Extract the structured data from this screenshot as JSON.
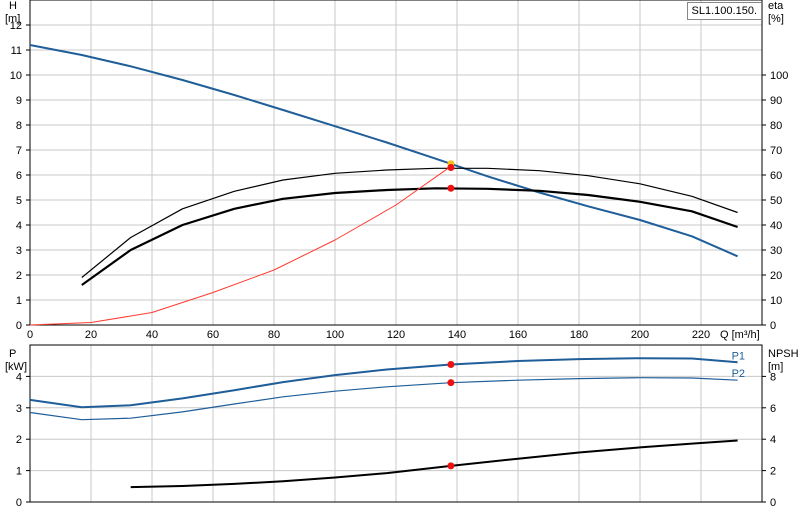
{
  "title": "SL1.100.150.",
  "chart_data": [
    {
      "id": "top",
      "type": "line",
      "x_axis": {
        "label": "Q [m³/h]",
        "range": [
          0,
          240
        ],
        "ticks": [
          0,
          20,
          40,
          60,
          80,
          100,
          120,
          140,
          160,
          180,
          200,
          220
        ]
      },
      "y_left": {
        "label_top": "H",
        "label_bottom": "[m]",
        "range": [
          0,
          13
        ],
        "ticks": [
          0,
          1,
          2,
          3,
          4,
          5,
          6,
          7,
          8,
          9,
          10,
          11,
          12
        ]
      },
      "y_right": {
        "label_top": "eta",
        "label_bottom": "[%]",
        "range": [
          0,
          130
        ],
        "ticks": [
          0,
          10,
          20,
          30,
          40,
          50,
          60,
          70,
          80,
          90,
          100
        ]
      },
      "grid": true,
      "series": [
        {
          "axis": "left",
          "color": "#1f5e99",
          "width": 2,
          "x": [
            0,
            17,
            33,
            50,
            67,
            83,
            100,
            117,
            133,
            150,
            167,
            183,
            200,
            217,
            232
          ],
          "y": [
            11.2,
            10.8,
            10.35,
            9.8,
            9.2,
            8.6,
            7.95,
            7.3,
            6.65,
            5.95,
            5.3,
            4.75,
            4.2,
            3.55,
            2.75
          ]
        },
        {
          "axis": "right",
          "color": "#000000",
          "width": 1.2,
          "x": [
            17,
            33,
            50,
            67,
            83,
            100,
            117,
            133,
            150,
            167,
            183,
            200,
            217,
            232
          ],
          "y": [
            19,
            35,
            46.5,
            53.5,
            58,
            60.7,
            62,
            62.7,
            62.7,
            61.7,
            59.7,
            56.5,
            51.5,
            45
          ]
        },
        {
          "axis": "right",
          "color": "#000000",
          "width": 2.2,
          "x": [
            17,
            33,
            50,
            67,
            83,
            100,
            117,
            133,
            150,
            167,
            183,
            200,
            217,
            232
          ],
          "y": [
            16,
            30,
            40,
            46.5,
            50.5,
            52.8,
            54,
            54.7,
            54.5,
            53.7,
            52,
            49.3,
            45.5,
            39.2
          ]
        },
        {
          "axis": "left",
          "color": "#ff3b30",
          "width": 1,
          "x": [
            0,
            20,
            40,
            60,
            80,
            100,
            120,
            138
          ],
          "y": [
            0,
            0.1,
            0.5,
            1.3,
            2.2,
            3.4,
            4.8,
            6.35
          ]
        }
      ],
      "markers": [
        {
          "axis": "left",
          "x": 138,
          "y": 6.45,
          "color": "#f5c21b"
        },
        {
          "axis": "left",
          "x": 138,
          "y": 6.3,
          "color": "#ee1111"
        },
        {
          "axis": "right",
          "x": 138,
          "y": 54.7,
          "color": "#ee1111"
        }
      ]
    },
    {
      "id": "bottom",
      "type": "line",
      "x_axis": {
        "range": [
          0,
          240
        ]
      },
      "y_left": {
        "label_top": "P",
        "label_bottom": "[kW]",
        "range": [
          0,
          5
        ],
        "ticks": [
          0,
          1,
          2,
          3,
          4
        ]
      },
      "y_right": {
        "label_top": "NPSH",
        "label_bottom": "[m]",
        "range": [
          0,
          10
        ],
        "ticks": [
          0,
          2,
          4,
          6,
          8
        ]
      },
      "grid": true,
      "series": [
        {
          "name": "P1",
          "axis": "left",
          "color": "#1f5e99",
          "width": 2,
          "x": [
            0,
            17,
            33,
            50,
            67,
            83,
            100,
            117,
            138,
            160,
            180,
            200,
            217,
            232
          ],
          "y": [
            3.25,
            3.02,
            3.08,
            3.3,
            3.56,
            3.82,
            4.04,
            4.22,
            4.38,
            4.49,
            4.55,
            4.58,
            4.57,
            4.45
          ]
        },
        {
          "name": "P2",
          "axis": "left",
          "color": "#1f5e99",
          "width": 1.2,
          "x": [
            0,
            17,
            33,
            50,
            67,
            83,
            100,
            117,
            138,
            160,
            180,
            200,
            217,
            232
          ],
          "y": [
            2.85,
            2.62,
            2.67,
            2.87,
            3.12,
            3.35,
            3.53,
            3.67,
            3.8,
            3.88,
            3.93,
            3.96,
            3.95,
            3.88
          ]
        },
        {
          "axis": "right",
          "color": "#000000",
          "width": 2,
          "x": [
            33,
            50,
            67,
            83,
            100,
            117,
            138,
            160,
            180,
            200,
            217,
            232
          ],
          "y": [
            0.95,
            1.02,
            1.15,
            1.32,
            1.56,
            1.84,
            2.3,
            2.76,
            3.15,
            3.48,
            3.72,
            3.92
          ]
        }
      ],
      "markers": [
        {
          "axis": "left",
          "x": 138,
          "y": 4.38,
          "color": "#ee1111"
        },
        {
          "axis": "left",
          "x": 138,
          "y": 3.8,
          "color": "#ee1111"
        },
        {
          "axis": "right",
          "x": 138,
          "y": 2.3,
          "color": "#ee1111"
        }
      ]
    }
  ]
}
